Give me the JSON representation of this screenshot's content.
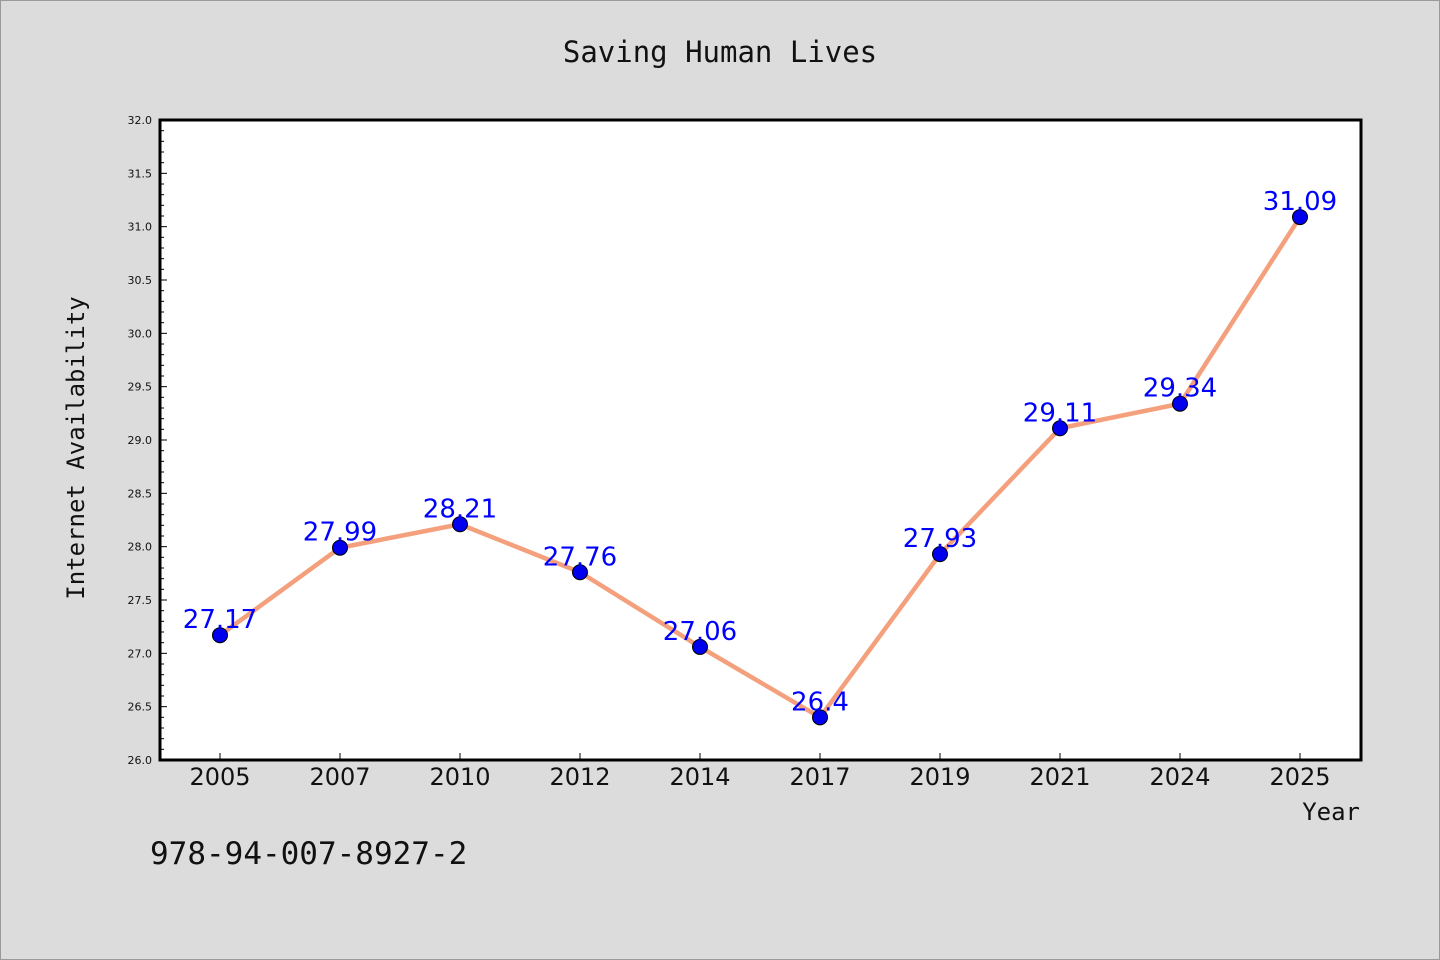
{
  "chart_data": {
    "type": "line",
    "title": "Saving Human Lives",
    "xlabel": "Year",
    "ylabel": "Internet Availability",
    "categories": [
      "2005",
      "2007",
      "2010",
      "2012",
      "2014",
      "2017",
      "2019",
      "2021",
      "2024",
      "2025"
    ],
    "series": [
      {
        "values": [
          27.17,
          27.99,
          28.21,
          27.76,
          27.06,
          26.4,
          27.93,
          29.11,
          29.34,
          31.09
        ],
        "labels": [
          "27.17",
          "27.99",
          "28.21",
          "27.76",
          "27.06",
          "26.4",
          "27.93",
          "29.11",
          "29.34",
          "31.09"
        ]
      }
    ],
    "ylim": [
      26.0,
      32.0
    ],
    "yticks": [
      "26.0",
      "26.5",
      "27.0",
      "27.5",
      "28.0",
      "28.5",
      "29.0",
      "29.5",
      "30.0",
      "30.5",
      "31.0",
      "31.5",
      "32.0"
    ],
    "grid": false,
    "legend": "none"
  },
  "footer": {
    "isbn": "978-94-007-8927-2"
  },
  "colors": {
    "background": "#dcdcdc",
    "plot_background": "#ffffff",
    "line": "#f4a07c",
    "marker": "#0000ee",
    "data_label": "#0000ff"
  }
}
